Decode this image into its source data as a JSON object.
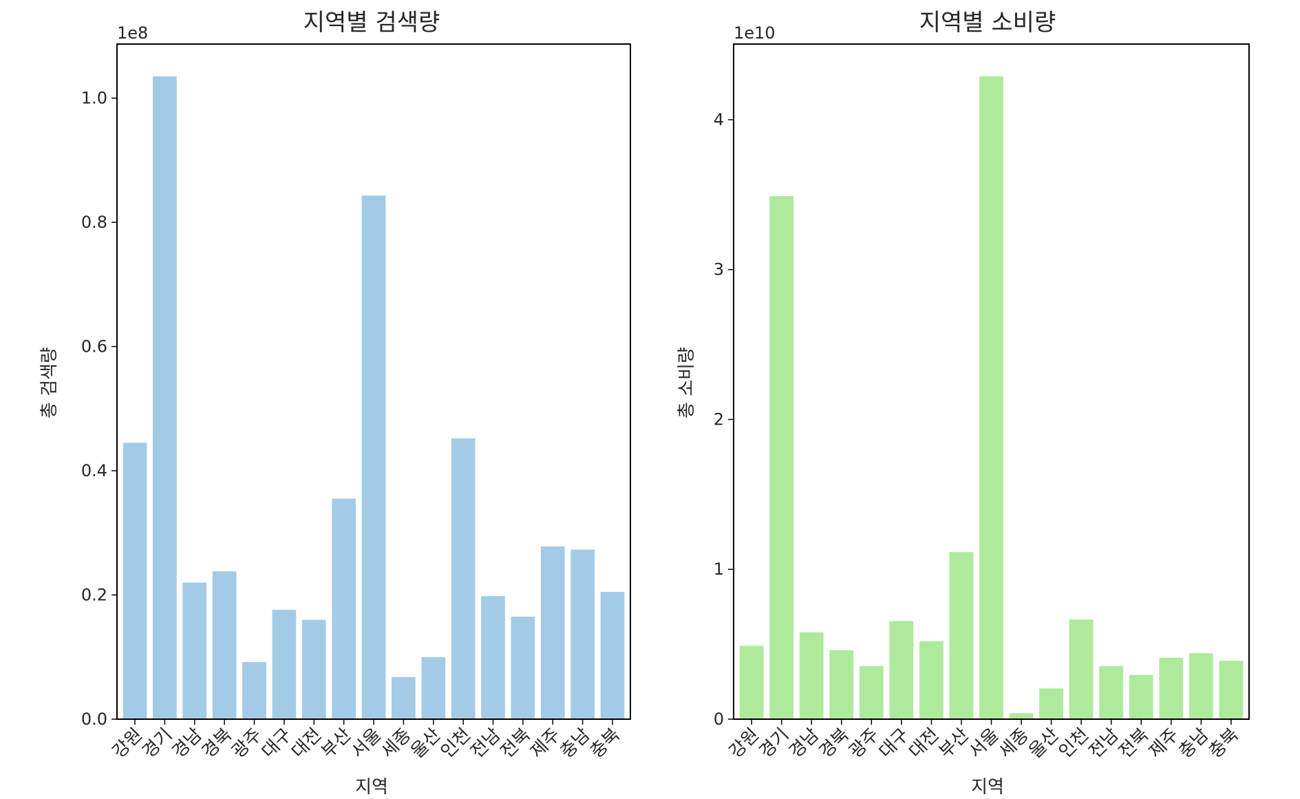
{
  "chart_data": [
    {
      "type": "bar",
      "title": "지역별 검색량",
      "xlabel": "지역",
      "ylabel": "총 검색량",
      "offset_text": "1e8",
      "color": "#a3cbe6",
      "categories": [
        "강원",
        "경기",
        "경남",
        "경북",
        "광주",
        "대구",
        "대전",
        "부산",
        "서울",
        "세종",
        "울산",
        "인천",
        "전남",
        "전북",
        "제주",
        "충남",
        "충북"
      ],
      "values": [
        0.445,
        1.035,
        0.22,
        0.238,
        0.092,
        0.176,
        0.16,
        0.355,
        0.843,
        0.068,
        0.1,
        0.452,
        0.198,
        0.165,
        0.278,
        0.273,
        0.205
      ],
      "yticks": [
        0.0,
        0.2,
        0.4,
        0.6,
        0.8,
        1.0
      ],
      "ytick_labels": [
        "0.0",
        "0.2",
        "0.4",
        "0.6",
        "0.8",
        "1.0"
      ],
      "ylim": [
        0,
        1.087
      ],
      "grid": false
    },
    {
      "type": "bar",
      "title": "지역별 소비량",
      "xlabel": "지역",
      "ylabel": "총 소비량",
      "offset_text": "1e10",
      "color": "#aeea9b",
      "categories": [
        "강원",
        "경기",
        "경남",
        "경북",
        "광주",
        "대구",
        "대전",
        "부산",
        "서울",
        "세종",
        "울산",
        "인천",
        "전남",
        "전북",
        "제주",
        "충남",
        "충북"
      ],
      "values": [
        0.49,
        3.49,
        0.58,
        0.46,
        0.355,
        0.655,
        0.52,
        1.115,
        4.29,
        0.04,
        0.205,
        0.665,
        0.355,
        0.295,
        0.41,
        0.44,
        0.39
      ],
      "yticks": [
        0,
        1,
        2,
        3,
        4
      ],
      "ytick_labels": [
        "0",
        "1",
        "2",
        "3",
        "4"
      ],
      "ylim": [
        0,
        4.505
      ],
      "grid": false
    }
  ]
}
